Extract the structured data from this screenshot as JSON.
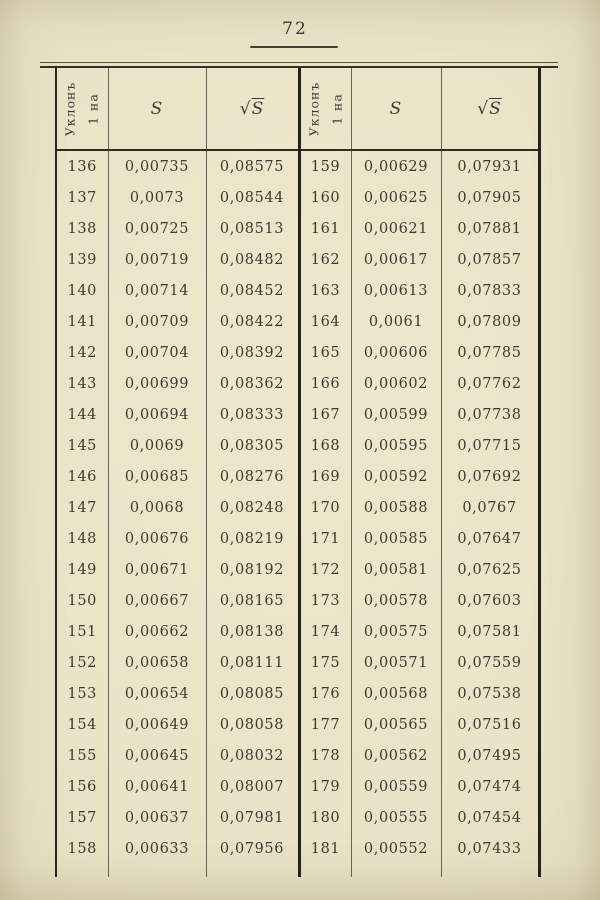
{
  "page": {
    "number": "72"
  },
  "table": {
    "header": {
      "incline_line1": "Уклонъ",
      "incline_line2": "1 на",
      "s_label": "S",
      "sqrt_sign": "√",
      "sqrt_symbol": "S"
    },
    "rows": [
      [
        "136",
        "0,00735",
        "0,08575",
        "159",
        "0,00629",
        "0,07931"
      ],
      [
        "137",
        "0,0073",
        "0,08544",
        "160",
        "0,00625",
        "0,07905"
      ],
      [
        "138",
        "0,00725",
        "0,08513",
        "161",
        "0,00621",
        "0,07881"
      ],
      [
        "139",
        "0,00719",
        "0,08482",
        "162",
        "0,00617",
        "0,07857"
      ],
      [
        "140",
        "0,00714",
        "0,08452",
        "163",
        "0,00613",
        "0,07833"
      ],
      [
        "141",
        "0,00709",
        "0,08422",
        "164",
        "0,0061",
        "0,07809"
      ],
      [
        "142",
        "0,00704",
        "0,08392",
        "165",
        "0,00606",
        "0,07785"
      ],
      [
        "143",
        "0,00699",
        "0,08362",
        "166",
        "0,00602",
        "0,07762"
      ],
      [
        "144",
        "0,00694",
        "0,08333",
        "167",
        "0,00599",
        "0,07738"
      ],
      [
        "145",
        "0,0069",
        "0,08305",
        "168",
        "0,00595",
        "0,07715"
      ],
      [
        "146",
        "0,00685",
        "0,08276",
        "169",
        "0,00592",
        "0,07692"
      ],
      [
        "147",
        "0,0068",
        "0,08248",
        "170",
        "0,00588",
        "0,0767"
      ],
      [
        "148",
        "0,00676",
        "0,08219",
        "171",
        "0,00585",
        "0,07647"
      ],
      [
        "149",
        "0,00671",
        "0,08192",
        "172",
        "0,00581",
        "0,07625"
      ],
      [
        "150",
        "0,00667",
        "0,08165",
        "173",
        "0,00578",
        "0,07603"
      ],
      [
        "151",
        "0,00662",
        "0,08138",
        "174",
        "0,00575",
        "0,07581"
      ],
      [
        "152",
        "0,00658",
        "0,08111",
        "175",
        "0,00571",
        "0,07559"
      ],
      [
        "153",
        "0,00654",
        "0,08085",
        "176",
        "0,00568",
        "0,07538"
      ],
      [
        "154",
        "0,00649",
        "0,08058",
        "177",
        "0,00565",
        "0,07516"
      ],
      [
        "155",
        "0,00645",
        "0,08032",
        "178",
        "0,00562",
        "0,07495"
      ],
      [
        "156",
        "0,00641",
        "0,08007",
        "179",
        "0,00559",
        "0,07474"
      ],
      [
        "157",
        "0,00637",
        "0,07981",
        "180",
        "0,00555",
        "0,07454"
      ],
      [
        "158",
        "0,00633",
        "0,07956",
        "181",
        "0,00552",
        "0,07433"
      ]
    ]
  },
  "colors": {
    "paper": "#e9e2c6",
    "ink": "#3e3a31",
    "rule_thin": "#6b6353",
    "rule_thick": "#25221b"
  }
}
